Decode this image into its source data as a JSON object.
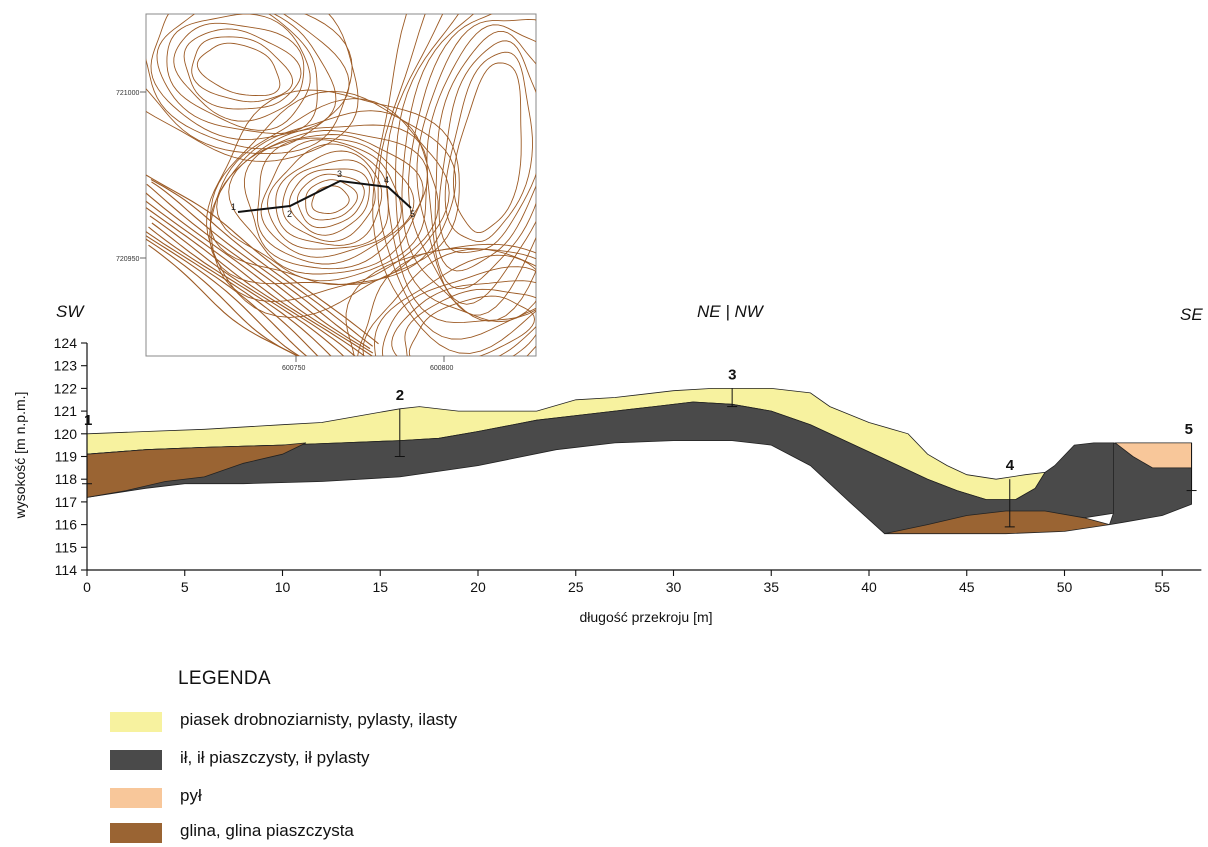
{
  "colors": {
    "sand": "#f7f29f",
    "clay": "#4a4a4a",
    "silt": "#f8c79a",
    "loam": "#9a6433",
    "contour": "#9c5a24",
    "line": "#111111"
  },
  "inset_map": {
    "y_labels": [
      "721000",
      "720950"
    ],
    "x_labels": [
      "600750",
      "600800"
    ],
    "section_points": [
      "1",
      "2",
      "3",
      "4",
      "5"
    ]
  },
  "profile": {
    "direction_labels": [
      "SW",
      "NE | NW",
      "SE"
    ],
    "y_axis_label": "wysokość [m n.p.m.]",
    "x_axis_label": "długość przekroju [m]",
    "x_ticks": [
      0,
      5,
      10,
      15,
      20,
      25,
      30,
      35,
      40,
      45,
      50,
      55
    ],
    "y_ticks": [
      114,
      115,
      116,
      117,
      118,
      119,
      120,
      121,
      122,
      123,
      124
    ],
    "x_range": [
      0,
      57
    ],
    "y_range": [
      114,
      124
    ],
    "boreholes": [
      {
        "label": "1",
        "x": 0,
        "top": 120.0,
        "bottom": 117.8
      },
      {
        "label": "2",
        "x": 16,
        "top": 121.1,
        "bottom": 119.0
      },
      {
        "label": "3",
        "x": 33,
        "top": 122.0,
        "bottom": 121.2
      },
      {
        "label": "4",
        "x": 47.2,
        "top": 118.0,
        "bottom": 115.9
      },
      {
        "label": "5",
        "x": 56.5,
        "top": 119.6,
        "bottom": 117.5
      }
    ]
  },
  "legend": {
    "title": "LEGENDA",
    "items": [
      {
        "label": "piasek drobnoziarnisty, pylasty, ilasty",
        "color": "#f7f29f"
      },
      {
        "label": "ił, ił piaszczysty, ił pylasty",
        "color": "#4a4a4a"
      },
      {
        "label": "pył",
        "color": "#f8c79a"
      },
      {
        "label": "glina, glina piaszczysta",
        "color": "#9a6433"
      }
    ]
  }
}
